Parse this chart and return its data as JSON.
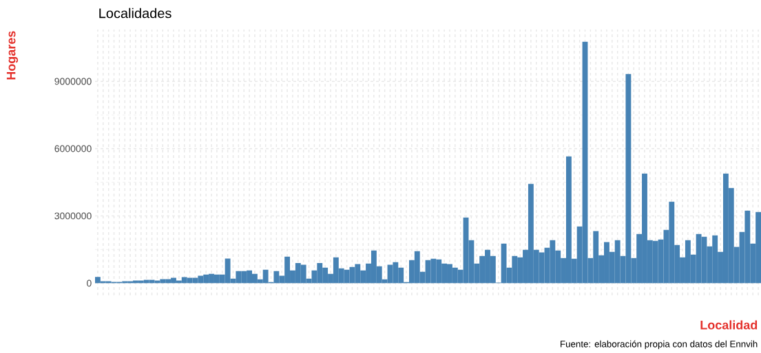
{
  "chart_data": {
    "type": "bar",
    "title": "Localidades",
    "xlabel": "Localidad",
    "ylabel": "Hogares",
    "annotations": [
      "Fuente: elaboración propia con datos del Ennvih"
    ],
    "categories": [
      null,
      null,
      null,
      null,
      null,
      null,
      null,
      null,
      null,
      null,
      null,
      null,
      null,
      null,
      null,
      null,
      null,
      null,
      null,
      null,
      null,
      null,
      null,
      null,
      null,
      null,
      null,
      null,
      null,
      null,
      null,
      null,
      null,
      null,
      null,
      null,
      null,
      null,
      null,
      null,
      null,
      null,
      null,
      null,
      null,
      null,
      null,
      null,
      null,
      null,
      null,
      null,
      null,
      null,
      null,
      null,
      null,
      null,
      null,
      null,
      null,
      null,
      null,
      null,
      null,
      null,
      null,
      null,
      null,
      null,
      null,
      null,
      null,
      null,
      null,
      null,
      null,
      null,
      null,
      null,
      null,
      null,
      null,
      null,
      null,
      null,
      null,
      null,
      null,
      null,
      null,
      null,
      null,
      null,
      null,
      null,
      null,
      null,
      null,
      null,
      null,
      null,
      null,
      null,
      null,
      null,
      null,
      null,
      null,
      null,
      null,
      null,
      null,
      null,
      null,
      null,
      null,
      null,
      null,
      null,
      null,
      null,
      null
    ],
    "values": [
      280000,
      90000,
      90000,
      60000,
      60000,
      90000,
      90000,
      120000,
      120000,
      150000,
      150000,
      120000,
      180000,
      180000,
      240000,
      120000,
      270000,
      240000,
      240000,
      330000,
      390000,
      420000,
      390000,
      390000,
      1100000,
      200000,
      540000,
      540000,
      570000,
      420000,
      175000,
      600000,
      50000,
      540000,
      330000,
      1180000,
      570000,
      900000,
      820000,
      200000,
      570000,
      900000,
      690000,
      420000,
      1150000,
      660000,
      600000,
      725000,
      850000,
      570000,
      880000,
      1460000,
      755000,
      175000,
      820000,
      940000,
      695000,
      50000,
      1030000,
      1430000,
      510000,
      1030000,
      1090000,
      1060000,
      880000,
      850000,
      695000,
      600000,
      2930000,
      1920000,
      880000,
      1215000,
      1490000,
      1215000,
      30000,
      1765000,
      695000,
      1215000,
      1150000,
      1490000,
      4430000,
      1490000,
      1370000,
      1580000,
      1920000,
      1460000,
      1120000,
      5650000,
      1090000,
      2530000,
      10770000,
      1120000,
      2320000,
      1245000,
      1830000,
      1400000,
      1920000,
      1215000,
      9330000,
      1120000,
      2195000,
      4890000,
      1920000,
      1890000,
      1950000,
      2380000,
      3635000,
      1705000,
      1150000,
      1920000,
      1275000,
      2195000,
      2070000,
      1645000,
      2135000,
      1400000,
      4890000,
      4245000,
      1615000,
      2285000,
      3235000,
      1765000,
      3175000
    ],
    "color": "#4682b4",
    "ylim": [
      -540000,
      11310000
    ],
    "yticks": [
      0,
      3000000,
      6000000,
      9000000
    ],
    "grid": true,
    "tick_labels": "y"
  }
}
